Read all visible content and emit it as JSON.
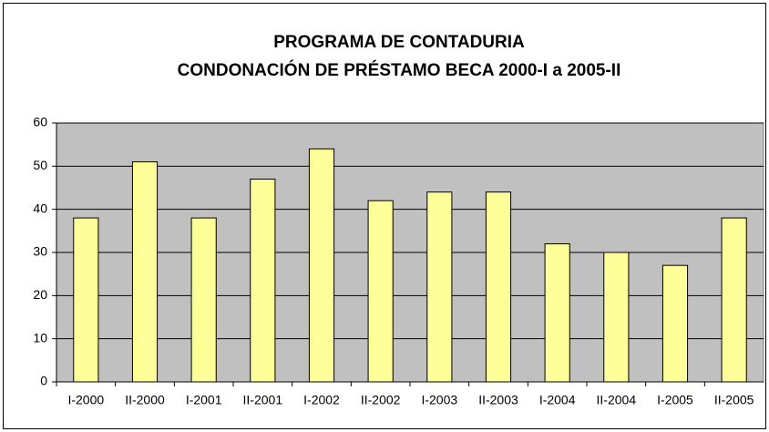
{
  "chart_data": {
    "type": "bar",
    "title": "PROGRAMA DE CONTADURIA",
    "subtitle": "CONDONACIÓN DE PRÉSTAMO BECA 2000-I a 2005-II",
    "categories": [
      "I-2000",
      "II-2000",
      "I-2001",
      "II-2001",
      "I-2002",
      "II-2002",
      "I-2003",
      "II-2003",
      "I-2004",
      "II-2004",
      "I-2005",
      "II-2005"
    ],
    "values": [
      38,
      51,
      38,
      47,
      54,
      42,
      44,
      44,
      32,
      30,
      27,
      38
    ],
    "color": "#ffff99",
    "ylim": [
      0,
      60
    ],
    "yticks": [
      0,
      10,
      20,
      30,
      40,
      50,
      60
    ],
    "grid": true
  }
}
